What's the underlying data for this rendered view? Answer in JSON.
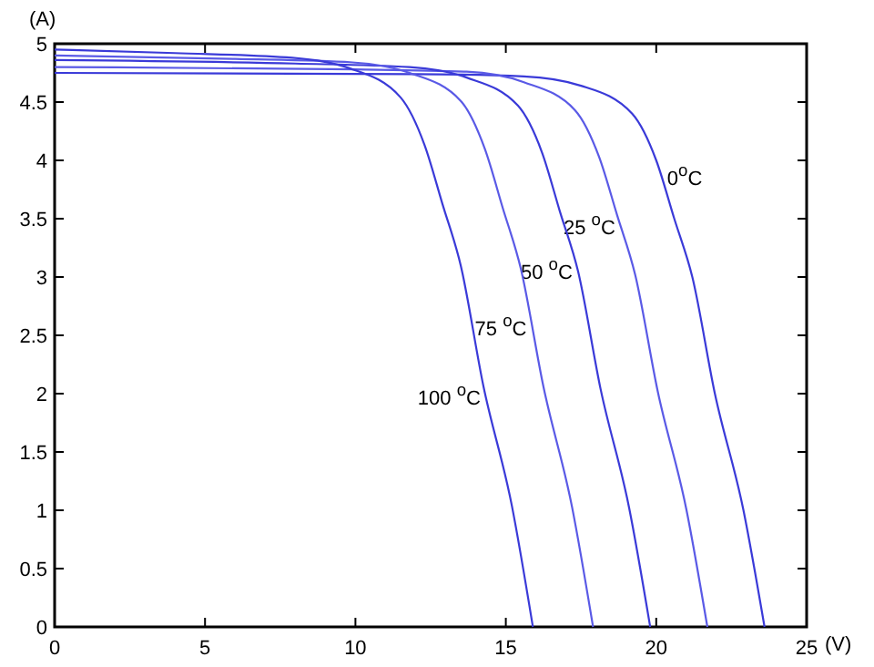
{
  "chart_data": {
    "type": "line",
    "xlabel": "(V)",
    "ylabel": "(A)",
    "xlim": [
      0,
      25
    ],
    "ylim": [
      0,
      5
    ],
    "xticks": [
      0,
      5,
      10,
      15,
      20,
      25
    ],
    "yticks": [
      0,
      0.5,
      1,
      1.5,
      2,
      2.5,
      3,
      3.5,
      4,
      4.5,
      5
    ],
    "grid": false,
    "marker": "none",
    "line_style": "solid",
    "series": [
      {
        "name": "0$^{o}$C",
        "color": "#3a3ad8",
        "x": [
          0,
          12,
          15.6,
          17.5,
          19.2,
          20.0,
          20.6,
          21.2,
          21.95,
          22.9,
          23.6
        ],
        "values": [
          4.75,
          4.74,
          4.72,
          4.64,
          4.4,
          4.0,
          3.5,
          3.0,
          2.0,
          1.0,
          0
        ]
      },
      {
        "name": "25 $^{o}$C",
        "color": "#5a5ae6",
        "x": [
          0,
          10,
          13.7,
          15.6,
          17.3,
          18.1,
          18.7,
          19.3,
          20.05,
          21.0,
          21.7
        ],
        "values": [
          4.8,
          4.78,
          4.76,
          4.67,
          4.43,
          4.03,
          3.53,
          3.02,
          2.02,
          1.01,
          0
        ]
      },
      {
        "name": "50 $^{o}$C",
        "color": "#3a3ad8",
        "x": [
          0,
          8,
          11.8,
          13.7,
          15.4,
          16.2,
          16.8,
          17.4,
          18.15,
          19.1,
          19.8
        ],
        "values": [
          4.86,
          4.83,
          4.8,
          4.71,
          4.47,
          4.07,
          3.56,
          3.05,
          2.04,
          1.02,
          0
        ]
      },
      {
        "name": "75 $^{o}$C",
        "color": "#5a5ae6",
        "x": [
          0,
          6,
          9.9,
          11.8,
          13.5,
          14.3,
          14.9,
          15.5,
          16.25,
          17.2,
          17.9
        ],
        "values": [
          4.9,
          4.87,
          4.84,
          4.75,
          4.51,
          4.1,
          3.59,
          3.07,
          2.06,
          1.03,
          0
        ]
      },
      {
        "name": "100 $^{o}$C",
        "color": "#3a3ad8",
        "x": [
          0,
          4,
          7.9,
          9.8,
          11.5,
          12.3,
          12.9,
          13.5,
          14.25,
          15.2,
          15.9
        ],
        "values": [
          4.95,
          4.92,
          4.88,
          4.79,
          4.54,
          4.13,
          3.62,
          3.1,
          2.07,
          1.04,
          0
        ]
      }
    ]
  }
}
